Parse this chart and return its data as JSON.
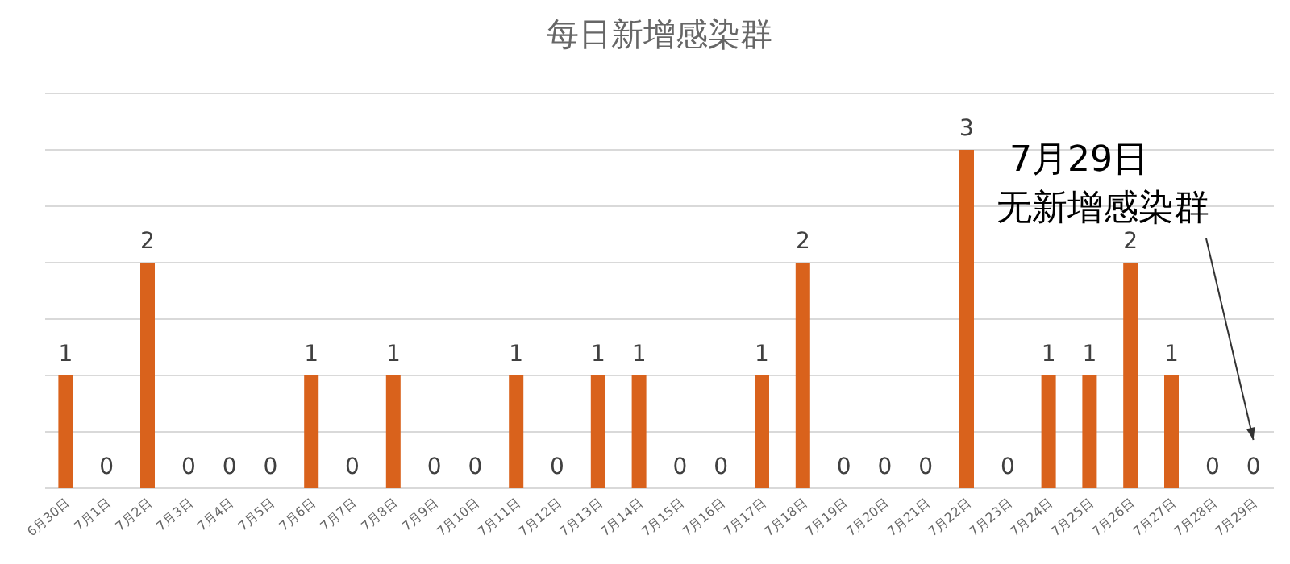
{
  "chart_data": {
    "type": "bar",
    "title": "每日新增感染群",
    "categories": [
      "6月30日",
      "7月1日",
      "7月2日",
      "7月3日",
      "7月4日",
      "7月5日",
      "7月6日",
      "7月7日",
      "7月8日",
      "7月9日",
      "7月10日",
      "7月11日",
      "7月12日",
      "7月13日",
      "7月14日",
      "7月15日",
      "7月16日",
      "7月17日",
      "7月18日",
      "7月19日",
      "7月20日",
      "7月21日",
      "7月22日",
      "7月23日",
      "7月24日",
      "7月25日",
      "7月26日",
      "7月27日",
      "7月28日",
      "7月29日"
    ],
    "values": [
      1,
      0,
      2,
      0,
      0,
      0,
      1,
      0,
      1,
      0,
      0,
      1,
      0,
      1,
      1,
      0,
      0,
      1,
      2,
      0,
      0,
      0,
      3,
      0,
      1,
      1,
      2,
      1,
      0,
      0
    ],
    "color": "#d9621c",
    "ylim": [
      0,
      3.5
    ],
    "yticks": [
      {
        "value": 0,
        "label": null
      },
      {
        "value": 0.5,
        "label": null
      },
      {
        "value": 1,
        "label": null
      },
      {
        "value": 1.5,
        "label": null
      },
      {
        "value": 2,
        "label": null
      },
      {
        "value": 2.5,
        "label": null
      },
      {
        "value": 3,
        "label": null
      },
      {
        "value": 3.5,
        "label": null
      }
    ],
    "grid": "y",
    "tick_labels": "x",
    "data_labels": true,
    "annotations": [
      "7月29日",
      "无新增感染群"
    ]
  }
}
